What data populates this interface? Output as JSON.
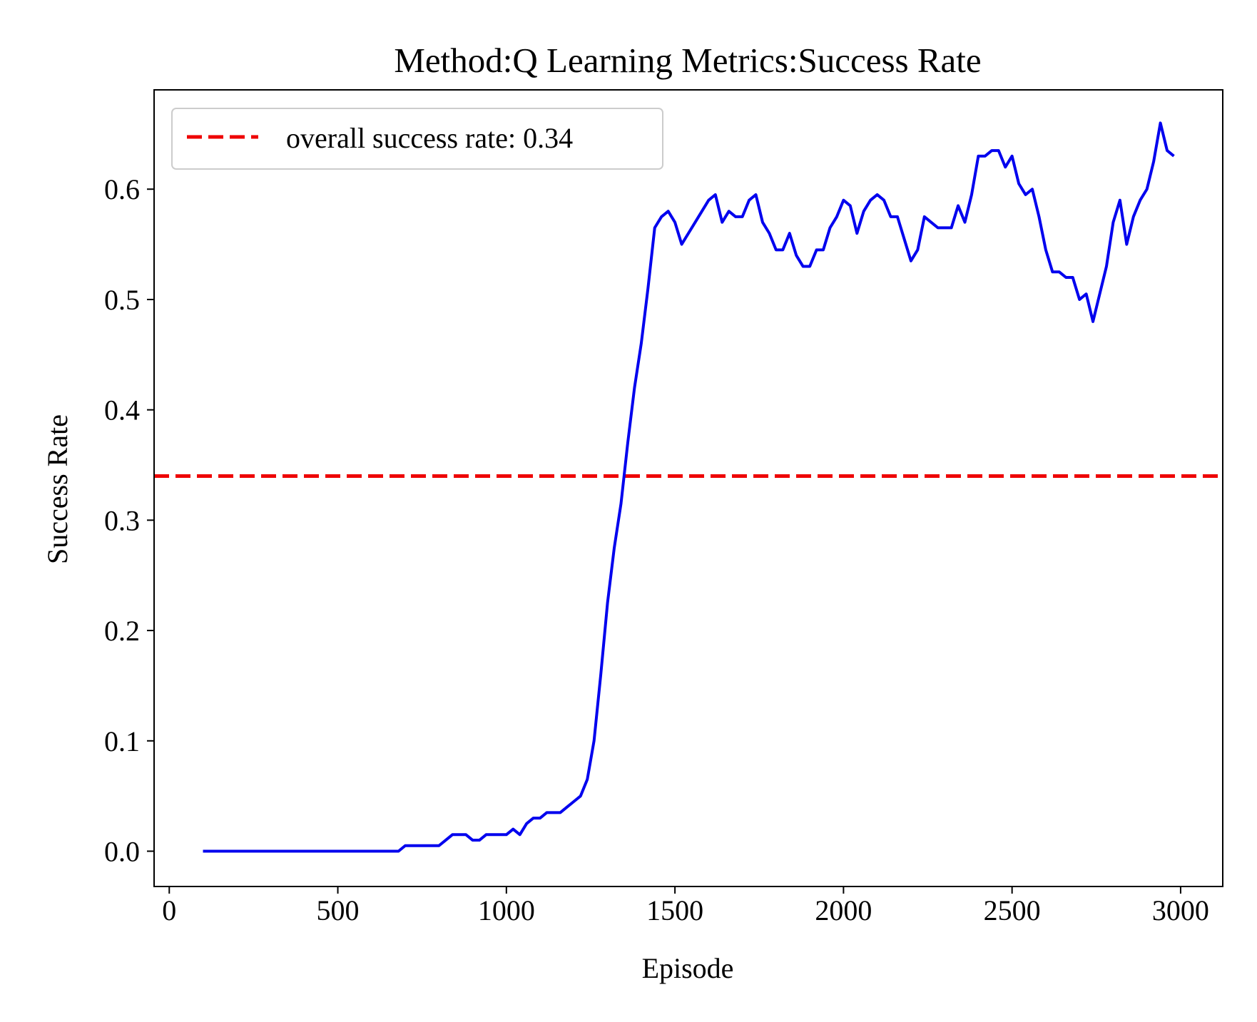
{
  "chart_data": {
    "type": "line",
    "title": "Method:Q Learning   Metrics:Success Rate",
    "xlabel": "Episode",
    "ylabel": "Success Rate",
    "xlim": [
      -45,
      3125
    ],
    "ylim": [
      -0.032,
      0.69
    ],
    "xticks": [
      0,
      500,
      1000,
      1500,
      2000,
      2500,
      3000
    ],
    "xtick_labels": [
      "0",
      "500",
      "1000",
      "1500",
      "2000",
      "2500",
      "3000"
    ],
    "yticks": [
      0.0,
      0.1,
      0.2,
      0.3,
      0.4,
      0.5,
      0.6
    ],
    "ytick_labels": [
      "0.0",
      "0.1",
      "0.2",
      "0.3",
      "0.4",
      "0.5",
      "0.6"
    ],
    "grid": false,
    "legend_position": "upper-left",
    "legend_label": "overall success rate: 0.34",
    "hline": {
      "y": 0.34,
      "color": "#ee0000",
      "style": "dashed",
      "label": "overall success rate: 0.34"
    },
    "series": [
      {
        "color": "#0000ee",
        "x": [
          100,
          120,
          140,
          160,
          180,
          200,
          220,
          240,
          260,
          280,
          300,
          320,
          340,
          360,
          380,
          400,
          420,
          440,
          460,
          480,
          500,
          520,
          540,
          560,
          580,
          600,
          620,
          640,
          660,
          680,
          700,
          720,
          740,
          760,
          780,
          800,
          820,
          840,
          860,
          880,
          900,
          920,
          940,
          960,
          980,
          1000,
          1020,
          1040,
          1060,
          1080,
          1100,
          1120,
          1140,
          1160,
          1180,
          1200,
          1220,
          1240,
          1260,
          1280,
          1300,
          1320,
          1340,
          1360,
          1380,
          1400,
          1420,
          1440,
          1460,
          1480,
          1500,
          1520,
          1540,
          1560,
          1580,
          1600,
          1620,
          1640,
          1660,
          1680,
          1700,
          1720,
          1740,
          1760,
          1780,
          1800,
          1820,
          1840,
          1860,
          1880,
          1900,
          1920,
          1940,
          1960,
          1980,
          2000,
          2020,
          2040,
          2060,
          2080,
          2100,
          2120,
          2140,
          2160,
          2180,
          2200,
          2220,
          2240,
          2260,
          2280,
          2300,
          2320,
          2340,
          2360,
          2380,
          2400,
          2420,
          2440,
          2460,
          2480,
          2500,
          2520,
          2540,
          2560,
          2580,
          2600,
          2620,
          2640,
          2660,
          2680,
          2700,
          2720,
          2740,
          2760,
          2780,
          2800,
          2820,
          2840,
          2860,
          2880,
          2900,
          2920,
          2940,
          2960,
          2980
        ],
        "y": [
          0,
          0,
          0,
          0,
          0,
          0,
          0,
          0,
          0,
          0,
          0,
          0,
          0,
          0,
          0,
          0,
          0,
          0,
          0,
          0,
          0,
          0,
          0,
          0,
          0,
          0,
          0,
          0,
          0,
          0,
          0.005,
          0.005,
          0.005,
          0.005,
          0.005,
          0.005,
          0.01,
          0.015,
          0.015,
          0.015,
          0.01,
          0.01,
          0.015,
          0.015,
          0.015,
          0.015,
          0.02,
          0.015,
          0.025,
          0.03,
          0.03,
          0.035,
          0.035,
          0.035,
          0.04,
          0.045,
          0.05,
          0.065,
          0.1,
          0.16,
          0.225,
          0.275,
          0.315,
          0.37,
          0.42,
          0.46,
          0.51,
          0.565,
          0.575,
          0.58,
          0.57,
          0.55,
          0.56,
          0.57,
          0.58,
          0.59,
          0.595,
          0.57,
          0.58,
          0.575,
          0.575,
          0.59,
          0.595,
          0.57,
          0.56,
          0.545,
          0.545,
          0.56,
          0.54,
          0.53,
          0.53,
          0.545,
          0.545,
          0.565,
          0.575,
          0.59,
          0.585,
          0.56,
          0.58,
          0.59,
          0.595,
          0.59,
          0.575,
          0.575,
          0.555,
          0.535,
          0.545,
          0.575,
          0.57,
          0.565,
          0.565,
          0.565,
          0.585,
          0.57,
          0.595,
          0.63,
          0.63,
          0.635,
          0.635,
          0.62,
          0.63,
          0.605,
          0.595,
          0.6,
          0.575,
          0.545,
          0.525,
          0.525,
          0.52,
          0.52,
          0.5,
          0.505,
          0.48,
          0.505,
          0.53,
          0.57,
          0.59,
          0.55,
          0.575,
          0.59,
          0.6,
          0.625,
          0.66,
          0.635,
          0.63
        ]
      }
    ]
  }
}
